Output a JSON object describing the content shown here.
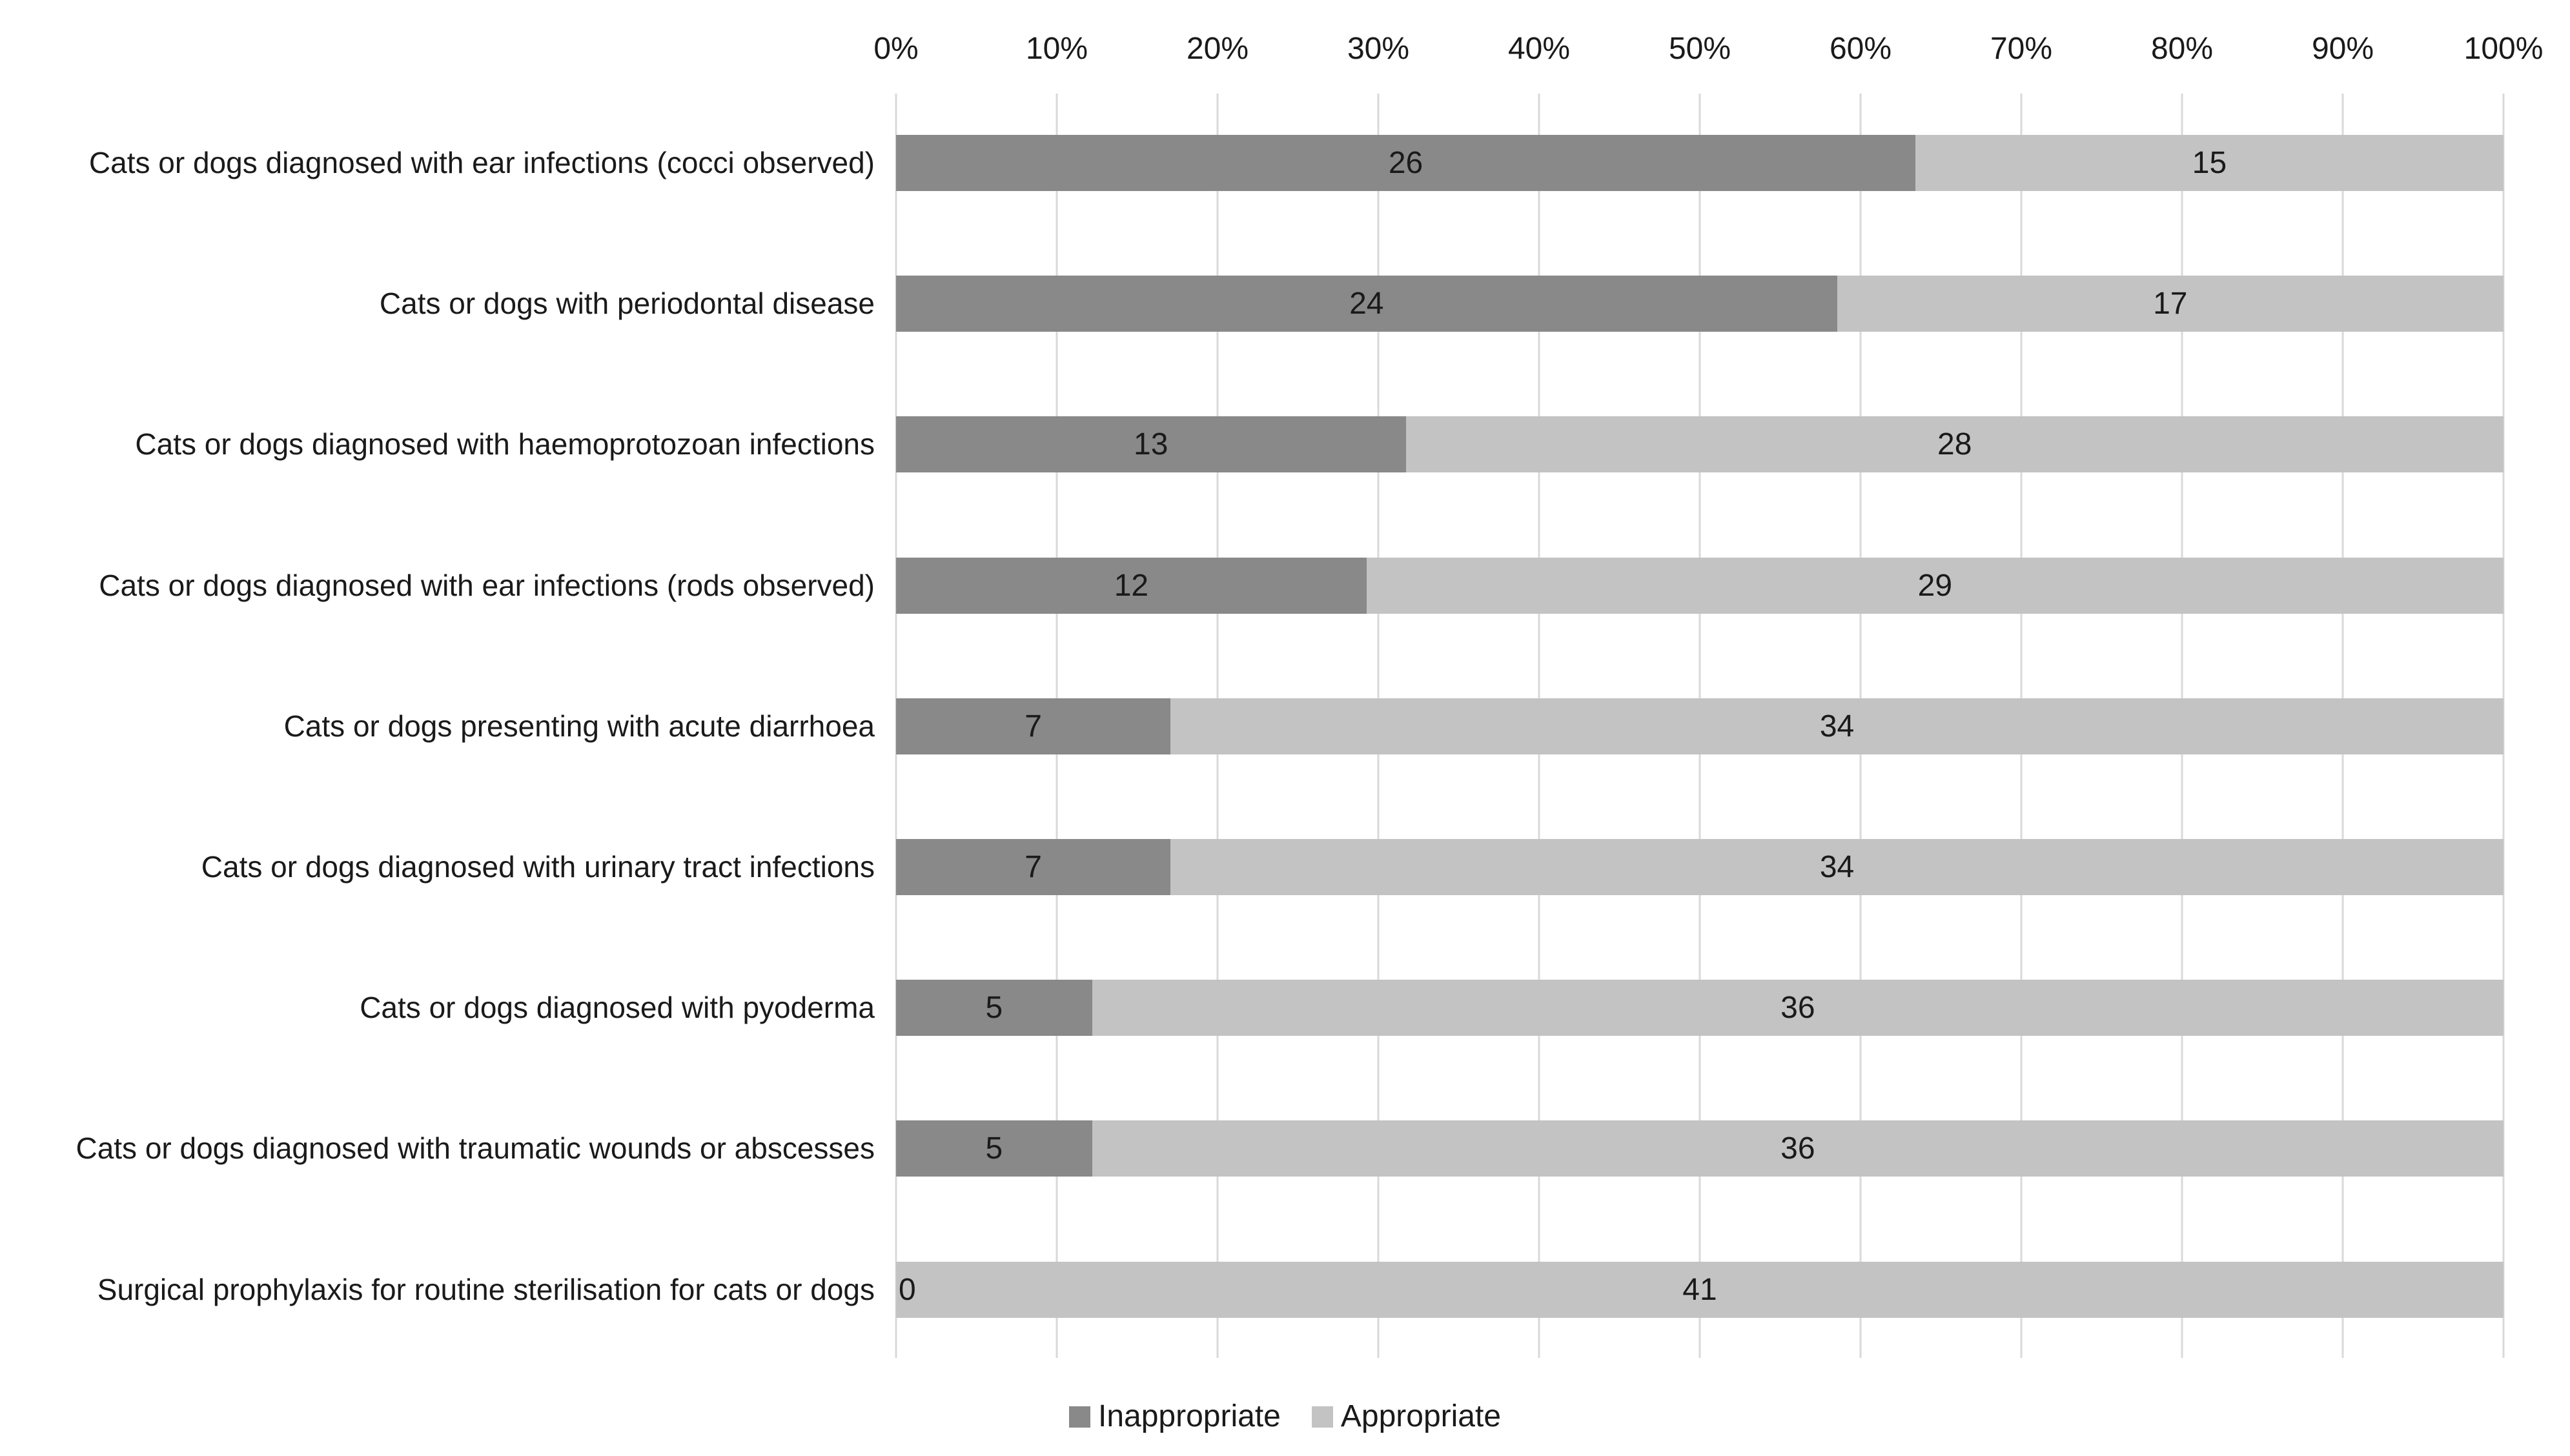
{
  "chart_data": {
    "type": "bar",
    "orientation": "horizontal",
    "stacked": true,
    "percent_stacked": true,
    "title": "",
    "categories": [
      "Cats or dogs diagnosed with ear infections (cocci observed)",
      "Cats or dogs with periodontal disease",
      "Cats or dogs diagnosed with haemoprotozoan infections",
      "Cats or dogs diagnosed with ear infections (rods observed)",
      "Cats or dogs presenting with acute diarrhoea",
      "Cats or dogs diagnosed with urinary tract infections",
      "Cats or dogs diagnosed with pyoderma",
      "Cats or dogs diagnosed with traumatic wounds or abscesses",
      "Surgical prophylaxis for routine sterilisation for cats or dogs"
    ],
    "series": [
      {
        "name": "Inappropriate",
        "color": "#898989",
        "values": [
          26,
          24,
          13,
          12,
          7,
          7,
          5,
          5,
          0
        ]
      },
      {
        "name": "Appropriate",
        "color": "#c3c3c3",
        "values": [
          15,
          17,
          28,
          29,
          34,
          34,
          36,
          36,
          41
        ]
      }
    ],
    "row_total": 41,
    "x_axis": {
      "ticks": [
        "0%",
        "10%",
        "20%",
        "30%",
        "40%",
        "50%",
        "60%",
        "70%",
        "80%",
        "90%",
        "100%"
      ],
      "min": 0,
      "max": 100,
      "position": "top"
    },
    "legend": {
      "position": "bottom",
      "entries": [
        "Inappropriate",
        "Appropriate"
      ]
    },
    "grid": true,
    "gridline_color": "#d9d9d9",
    "background": "#ffffff",
    "text_color": "#1a1a1a"
  }
}
